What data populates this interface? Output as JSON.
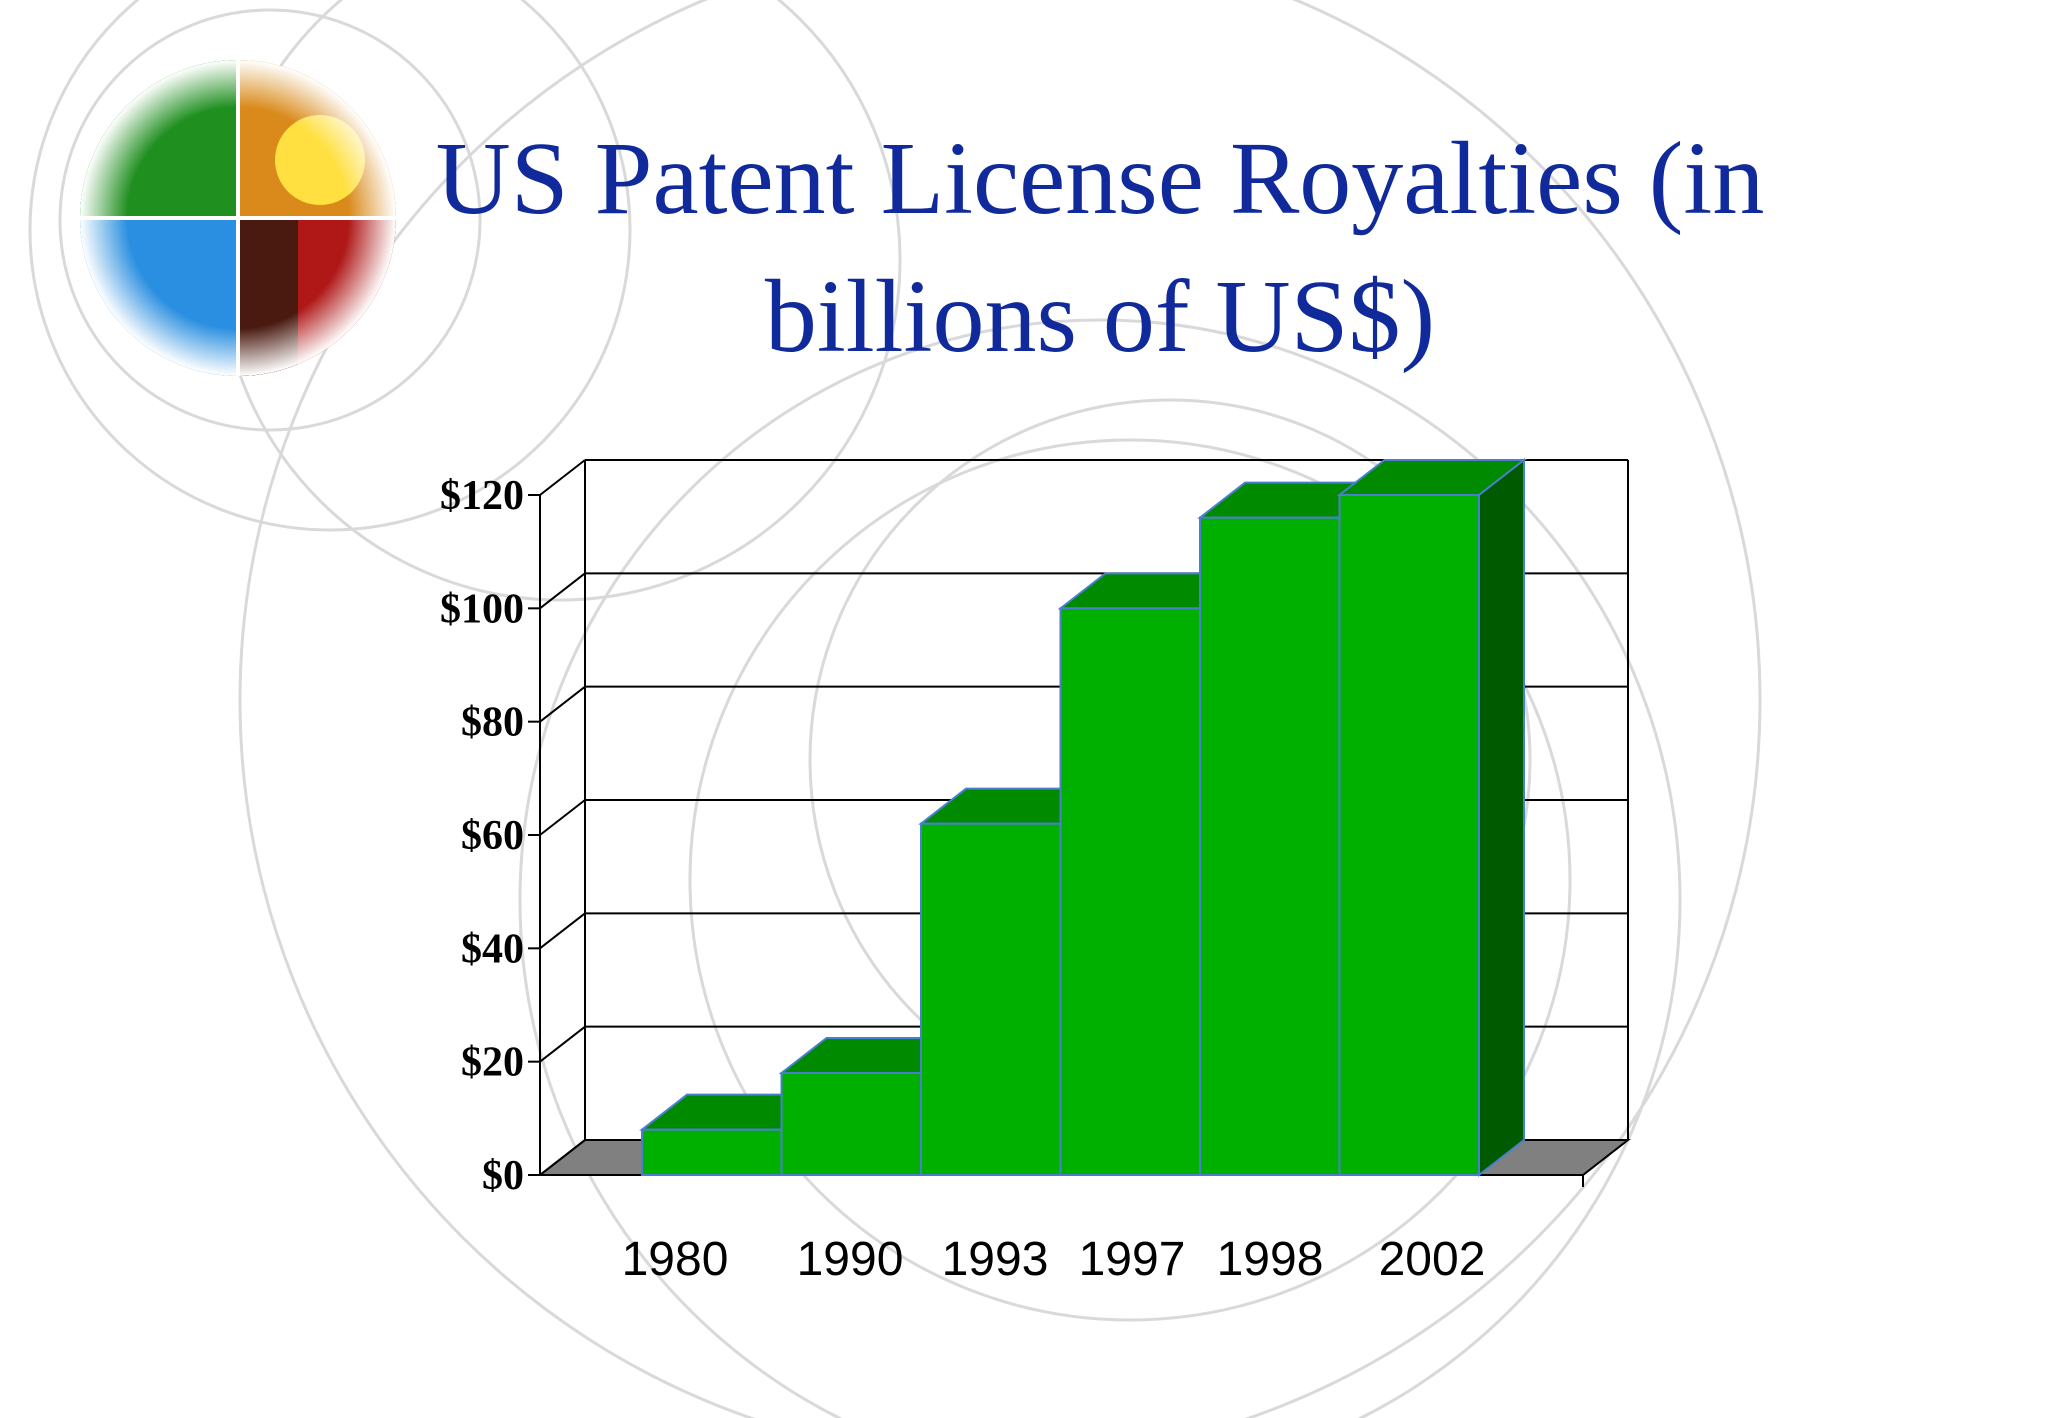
{
  "slide": {
    "title_line1": "US Patent License Royalties (in",
    "title_line2": "billions of US$)"
  },
  "colors": {
    "title": "#102a9c",
    "bar_front": "#00b000",
    "bar_top": "#008a00",
    "bar_side": "#005a00",
    "bar_edge": "#4a7fd0",
    "floor": "#808080"
  },
  "logo": {
    "icon": "globe-quadrant-logo-icon"
  },
  "chart_data": {
    "type": "bar",
    "style": "3d",
    "title": "US Patent License Royalties (in billions of US$)",
    "categories": [
      "1980",
      "1990",
      "1993",
      "1997",
      "1998",
      "2002"
    ],
    "series": [
      {
        "values": [
          8,
          18,
          62,
          100,
          116,
          120
        ]
      }
    ],
    "ylim": [
      0,
      120
    ],
    "yticks": [
      "$0",
      "$20",
      "$40",
      "$60",
      "$80",
      "$100",
      "$120"
    ],
    "ytick_values": [
      0,
      20,
      40,
      60,
      80,
      100,
      120
    ],
    "grid": true,
    "legend": "none"
  }
}
